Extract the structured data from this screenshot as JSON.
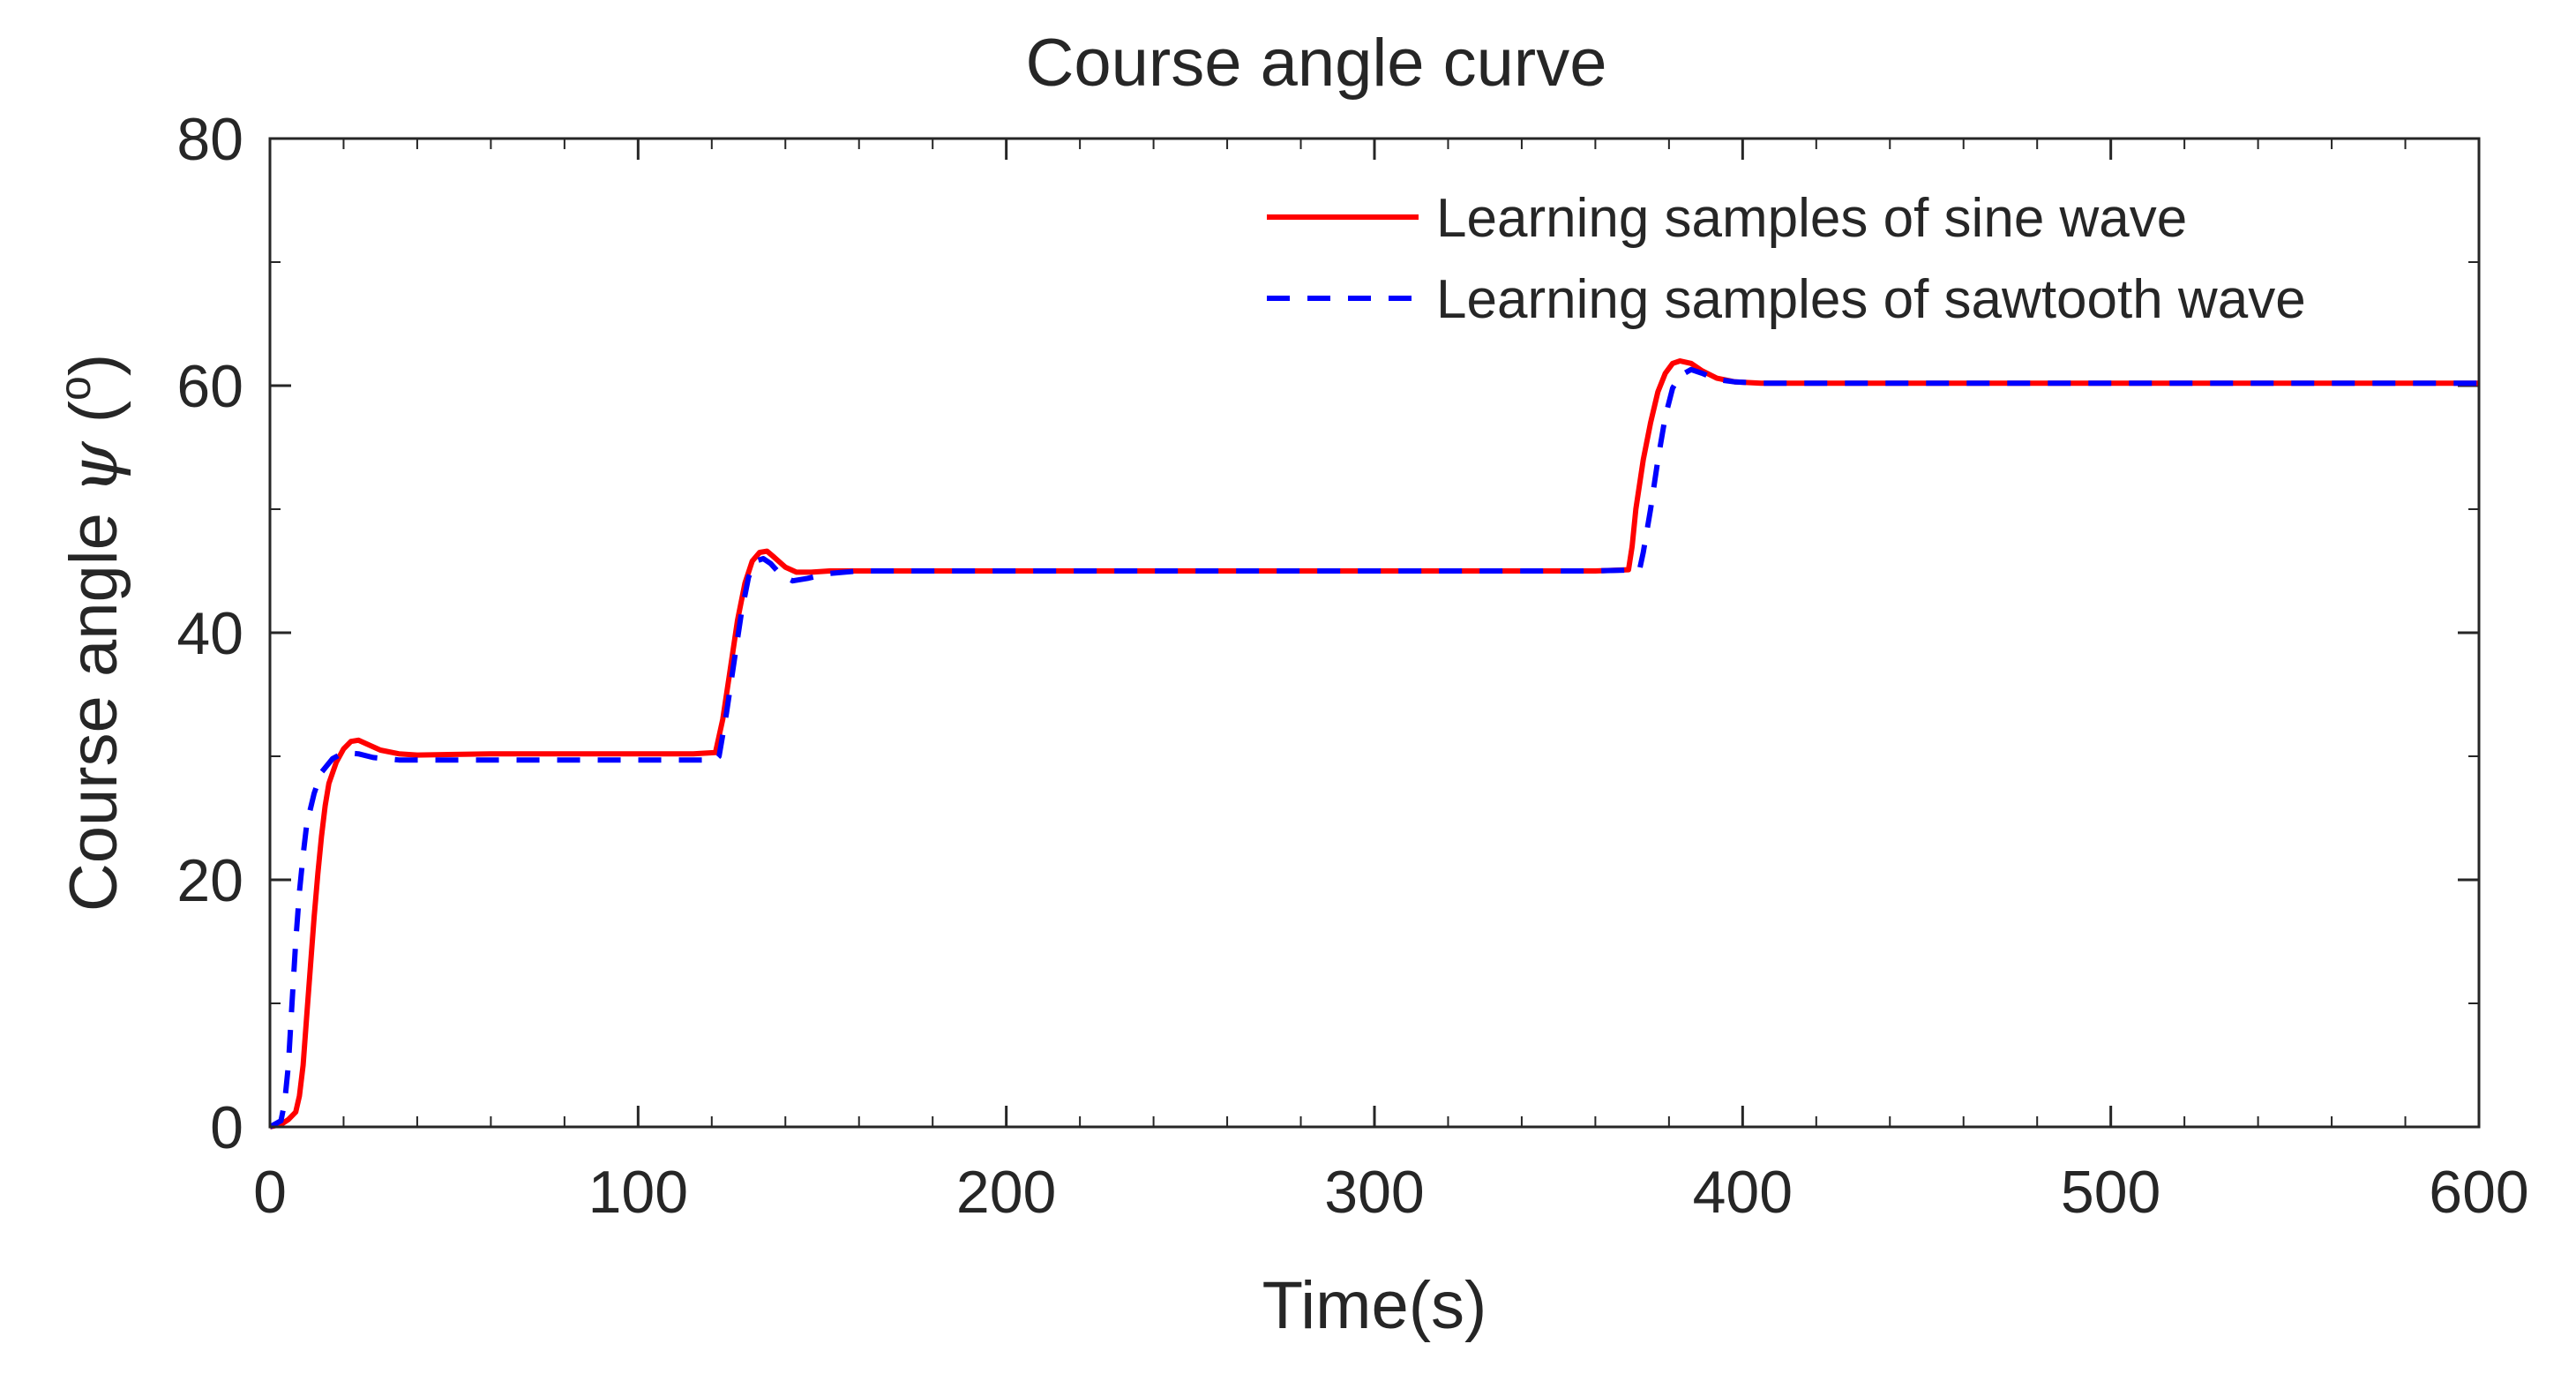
{
  "chart_data": {
    "type": "line",
    "title": "Course angle curve",
    "xlabel": "Time(s)",
    "ylabel": {
      "prefix": "Course angle ",
      "symbol": "ψ",
      "unit_open": " (",
      "unit_superscript": "o",
      "unit_close": ")"
    },
    "xlim": [
      0,
      600
    ],
    "ylim": [
      0,
      80
    ],
    "xticks": [
      0,
      100,
      200,
      300,
      400,
      500,
      600
    ],
    "yticks": [
      0,
      20,
      40,
      60,
      80
    ],
    "grid": false,
    "legend_position": "top-right",
    "series": [
      {
        "name": "Learning samples of sine wave",
        "color": "#ff0000",
        "style": "solid",
        "points": [
          [
            0,
            0
          ],
          [
            3,
            0.2
          ],
          [
            5,
            0.6
          ],
          [
            7,
            1.2
          ],
          [
            8,
            2.5
          ],
          [
            9,
            5
          ],
          [
            10,
            9
          ],
          [
            11,
            13
          ],
          [
            12,
            17
          ],
          [
            13,
            20.5
          ],
          [
            14,
            23.5
          ],
          [
            15,
            26
          ],
          [
            16,
            27.8
          ],
          [
            18,
            29.5
          ],
          [
            20,
            30.6
          ],
          [
            22,
            31.2
          ],
          [
            24,
            31.3
          ],
          [
            27,
            30.9
          ],
          [
            30,
            30.5
          ],
          [
            35,
            30.2
          ],
          [
            40,
            30.1
          ],
          [
            60,
            30.2
          ],
          [
            100,
            30.2
          ],
          [
            115,
            30.2
          ],
          [
            121,
            30.3
          ],
          [
            123,
            33
          ],
          [
            125,
            37
          ],
          [
            127,
            41
          ],
          [
            129,
            44
          ],
          [
            131,
            45.8
          ],
          [
            133,
            46.5
          ],
          [
            135,
            46.6
          ],
          [
            137,
            46.1
          ],
          [
            140,
            45.3
          ],
          [
            143,
            44.9
          ],
          [
            147,
            44.9
          ],
          [
            152,
            45
          ],
          [
            160,
            45
          ],
          [
            200,
            45
          ],
          [
            300,
            45
          ],
          [
            360,
            45
          ],
          [
            369,
            45.1
          ],
          [
            370,
            47
          ],
          [
            371,
            50
          ],
          [
            373,
            54
          ],
          [
            375,
            57
          ],
          [
            377,
            59.5
          ],
          [
            379,
            61
          ],
          [
            381,
            61.8
          ],
          [
            383,
            62
          ],
          [
            386,
            61.8
          ],
          [
            389,
            61.2
          ],
          [
            393,
            60.6
          ],
          [
            398,
            60.3
          ],
          [
            405,
            60.2
          ],
          [
            450,
            60.2
          ],
          [
            500,
            60.2
          ],
          [
            600,
            60.2
          ]
        ]
      },
      {
        "name": "Learning samples of sawtooth wave",
        "color": "#0000ff",
        "style": "dashed",
        "points": [
          [
            0,
            0
          ],
          [
            3,
            0.5
          ],
          [
            4,
            2
          ],
          [
            5,
            5
          ],
          [
            6,
            10
          ],
          [
            7,
            15
          ],
          [
            8,
            19
          ],
          [
            9,
            22
          ],
          [
            10,
            24.5
          ],
          [
            12,
            27
          ],
          [
            14,
            28.7
          ],
          [
            17,
            29.8
          ],
          [
            20,
            30.3
          ],
          [
            24,
            30.2
          ],
          [
            28,
            29.9
          ],
          [
            35,
            29.7
          ],
          [
            50,
            29.7
          ],
          [
            80,
            29.7
          ],
          [
            110,
            29.7
          ],
          [
            121,
            29.7
          ],
          [
            122,
            30
          ],
          [
            124,
            33.5
          ],
          [
            126,
            37.5
          ],
          [
            128,
            41.5
          ],
          [
            130,
            44.5
          ],
          [
            132,
            45.8
          ],
          [
            134,
            46
          ],
          [
            136,
            45.6
          ],
          [
            139,
            44.6
          ],
          [
            142,
            44.2
          ],
          [
            146,
            44.4
          ],
          [
            152,
            44.8
          ],
          [
            160,
            45
          ],
          [
            200,
            45
          ],
          [
            300,
            45
          ],
          [
            360,
            45
          ],
          [
            372,
            45.1
          ],
          [
            373,
            46.5
          ],
          [
            375,
            50
          ],
          [
            377,
            54
          ],
          [
            379,
            57.5
          ],
          [
            381,
            59.8
          ],
          [
            383,
            60.8
          ],
          [
            386,
            61.3
          ],
          [
            389,
            61
          ],
          [
            393,
            60.5
          ],
          [
            398,
            60.3
          ],
          [
            405,
            60.2
          ],
          [
            450,
            60.2
          ],
          [
            500,
            60.2
          ],
          [
            600,
            60.2
          ]
        ]
      }
    ]
  }
}
